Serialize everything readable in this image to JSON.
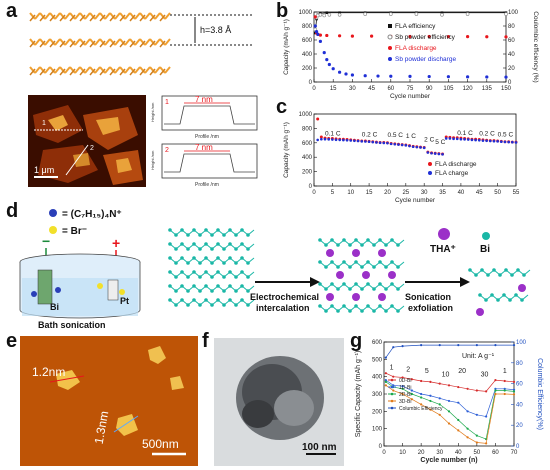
{
  "panel_labels": {
    "a": "a",
    "b": "b",
    "c": "c",
    "d": "d",
    "e": "e",
    "f": "f",
    "g": "g"
  },
  "panel_a": {
    "height_label": "h=3.8 Å",
    "scale_label": "1 μm",
    "line_labels": [
      "1",
      "2"
    ],
    "profile1": {
      "index": "1",
      "value": "7 nm",
      "xlabel": "Profile /nm",
      "ylabel": "Height /nm"
    },
    "profile2": {
      "index": "2",
      "value": "7 nm",
      "xlabel": "Profile /nm",
      "ylabel": "Height /nm"
    }
  },
  "panel_d": {
    "legend_cation": "= (C₇H₁₅)₄N⁺",
    "legend_anion": "= Br⁻",
    "electrode_bi": "Bi",
    "electrode_pt": "Pt",
    "minus": "−",
    "plus": "+",
    "caption": "Bath sonication",
    "step1": "Electrochemical\nintercalation",
    "step1_a": "Electrochemical",
    "step1_b": "intercalation",
    "step2_a": "Sonication",
    "step2_b": "exfoliation",
    "tha": "THA⁺",
    "bi": "Bi"
  },
  "panel_e": {
    "label1": "1.2nm",
    "label2": "1.3nm",
    "scale": "500nm"
  },
  "panel_f": {
    "scale": "100 nm"
  },
  "colors": {
    "black": "#111111",
    "gray": "#888888",
    "red": "#e8161c",
    "blue": "#1f2fd6",
    "axis_blue": "#1f4fbf",
    "orange": "#f0a030",
    "teal": "#1ab7a6",
    "purple": "#9b30c8",
    "afm_dark": "#3a0d00",
    "afm_mid": "#8e2e08",
    "afm_light": "#e9a23a"
  },
  "chart_data": [
    {
      "id": "b",
      "type": "line",
      "xlabel": "Cycle number",
      "ylabel": "Capacity (mAh g⁻¹)",
      "y2label": "Coulombic efficiency (%)",
      "xlim": [
        0,
        150
      ],
      "ylim": [
        0,
        1000
      ],
      "y2lim": [
        0,
        100
      ],
      "xticks": [
        0,
        15,
        30,
        45,
        60,
        75,
        90,
        105,
        120,
        135,
        150
      ],
      "yticks": [
        0,
        200,
        400,
        600,
        800,
        1000
      ],
      "y2ticks": [
        0,
        20,
        40,
        60,
        80,
        100
      ],
      "legend": [
        "FLA efficiency",
        "Sb powder efficiency",
        "FLA  discharge",
        "Sb powder discharge"
      ],
      "series": [
        {
          "name": "FLA efficiency",
          "axis": "y2",
          "x": [
            1,
            2,
            3,
            5,
            10,
            20,
            40,
            60,
            80,
            100,
            120,
            150
          ],
          "values": [
            70,
            90,
            96,
            98,
            99,
            99,
            99,
            99,
            99,
            99,
            99,
            99
          ]
        },
        {
          "name": "Sb powder efficiency",
          "axis": "y2",
          "x": [
            1,
            2,
            3,
            5,
            8,
            12,
            20,
            40,
            60,
            80,
            100,
            120,
            150
          ],
          "values": [
            75,
            92,
            95,
            96,
            95,
            96,
            96,
            97,
            97,
            97,
            96,
            97,
            97
          ]
        },
        {
          "name": "FLA  discharge",
          "axis": "y",
          "x": [
            1,
            2,
            3,
            5,
            10,
            20,
            30,
            45,
            60,
            75,
            90,
            105,
            120,
            135,
            150
          ],
          "values": [
            930,
            700,
            680,
            670,
            665,
            660,
            655,
            655,
            652,
            650,
            650,
            648,
            648,
            646,
            645
          ]
        },
        {
          "name": "Sb powder discharge",
          "axis": "y",
          "x": [
            1,
            2,
            3,
            5,
            8,
            10,
            12,
            15,
            20,
            25,
            30,
            40,
            50,
            60,
            75,
            90,
            105,
            120,
            135,
            150
          ],
          "values": [
            800,
            720,
            680,
            580,
            420,
            320,
            250,
            190,
            140,
            115,
            100,
            90,
            85,
            82,
            80,
            78,
            76,
            74,
            72,
            70
          ]
        }
      ]
    },
    {
      "id": "c",
      "type": "line",
      "xlabel": "Cycle number",
      "ylabel": "Capacity (mAh g⁻¹)",
      "xlim": [
        0,
        55
      ],
      "ylim": [
        0,
        1000
      ],
      "xticks": [
        0,
        5,
        10,
        15,
        20,
        25,
        30,
        35,
        40,
        45,
        50,
        55
      ],
      "yticks": [
        0,
        200,
        400,
        600,
        800,
        1000
      ],
      "rate_labels": [
        "0.1 C",
        "0.2 C",
        "0.5 C",
        "1 C",
        "2 C",
        "5 C",
        "0.1 C",
        "0.2 C",
        "0.5 C"
      ],
      "legend": [
        "FLA discharge",
        "FLA charge"
      ],
      "series": [
        {
          "name": "FLA discharge",
          "x": [
            1,
            2,
            3,
            4,
            5,
            6,
            7,
            8,
            9,
            10,
            11,
            12,
            13,
            14,
            15,
            16,
            17,
            18,
            19,
            20,
            21,
            22,
            23,
            24,
            25,
            26,
            27,
            28,
            29,
            30,
            31,
            32,
            33,
            34,
            35,
            36,
            37,
            38,
            39,
            40,
            41,
            42,
            43,
            44,
            45,
            46,
            47,
            48,
            49,
            50,
            51,
            52,
            53,
            54,
            55
          ],
          "values": [
            930,
            680,
            665,
            660,
            660,
            655,
            650,
            650,
            645,
            640,
            635,
            630,
            625,
            625,
            620,
            615,
            610,
            605,
            605,
            600,
            590,
            585,
            580,
            575,
            570,
            560,
            550,
            545,
            540,
            535,
            470,
            460,
            455,
            450,
            445,
            680,
            675,
            670,
            670,
            665,
            660,
            655,
            650,
            650,
            645,
            640,
            635,
            630,
            630,
            625,
            620,
            615,
            615,
            610,
            610
          ]
        },
        {
          "name": "FLA charge",
          "x": [
            1,
            2,
            3,
            4,
            5,
            6,
            7,
            8,
            9,
            10,
            11,
            12,
            13,
            14,
            15,
            16,
            17,
            18,
            19,
            20,
            21,
            22,
            23,
            24,
            25,
            26,
            27,
            28,
            29,
            30,
            31,
            32,
            33,
            34,
            35,
            36,
            37,
            38,
            39,
            40,
            41,
            42,
            43,
            44,
            45,
            46,
            47,
            48,
            49,
            50,
            51,
            52,
            53,
            54,
            55
          ],
          "values": [
            640,
            650,
            650,
            648,
            645,
            642,
            640,
            638,
            635,
            632,
            628,
            625,
            620,
            618,
            615,
            610,
            605,
            600,
            598,
            595,
            585,
            580,
            575,
            570,
            565,
            555,
            545,
            540,
            535,
            530,
            465,
            455,
            450,
            445,
            440,
            660,
            660,
            655,
            655,
            650,
            648,
            645,
            640,
            638,
            635,
            630,
            628,
            625,
            622,
            620,
            615,
            612,
            610,
            608,
            605
          ]
        }
      ]
    },
    {
      "id": "g",
      "type": "line",
      "xlabel": "Cycle number (n)",
      "ylabel": "Specific Capacity (mAh g⁻¹)",
      "y2label": "Columbic Efficiency(%)",
      "unit_label": "Unit: A g⁻¹",
      "rate_labels": [
        "1",
        "2",
        "5",
        "10",
        "20",
        "30",
        "1"
      ],
      "xlim": [
        0,
        70
      ],
      "ylim": [
        0,
        600
      ],
      "y2lim": [
        0,
        100
      ],
      "xticks": [
        0,
        10,
        20,
        30,
        40,
        50,
        60,
        70
      ],
      "yticks": [
        0,
        100,
        200,
        300,
        400,
        500,
        600
      ],
      "y2ticks": [
        0,
        20,
        40,
        60,
        80,
        100
      ],
      "legend": [
        "0D-Bi",
        "1D-Bi",
        "2D-Bi",
        "3D-Bi",
        "Columbic Efficiency"
      ],
      "series": [
        {
          "name": "0D-Bi",
          "x": [
            1,
            5,
            10,
            15,
            20,
            25,
            30,
            35,
            40,
            45,
            50,
            55,
            60,
            65,
            70
          ],
          "values": [
            420,
            400,
            395,
            385,
            375,
            370,
            360,
            350,
            340,
            330,
            320,
            315,
            380,
            375,
            370
          ]
        },
        {
          "name": "1D-Bi",
          "x": [
            1,
            5,
            10,
            15,
            20,
            25,
            30,
            35,
            40,
            45,
            50,
            55,
            60,
            65,
            70
          ],
          "values": [
            380,
            350,
            345,
            320,
            300,
            290,
            275,
            260,
            250,
            200,
            180,
            170,
            330,
            330,
            325
          ]
        },
        {
          "name": "2D-Bi",
          "x": [
            1,
            5,
            10,
            15,
            20,
            25,
            30,
            35,
            40,
            45,
            50,
            55,
            60,
            65,
            70
          ],
          "values": [
            370,
            340,
            330,
            300,
            280,
            260,
            240,
            200,
            150,
            100,
            60,
            40,
            320,
            320,
            315
          ]
        },
        {
          "name": "3D-Bi",
          "x": [
            1,
            5,
            10,
            15,
            20,
            25,
            30,
            35,
            40,
            45,
            50,
            55,
            60,
            65,
            70
          ],
          "values": [
            350,
            320,
            300,
            270,
            240,
            210,
            180,
            130,
            90,
            50,
            20,
            15,
            300,
            300,
            298
          ]
        },
        {
          "name": "Columbic Efficiency",
          "axis": "y2",
          "x": [
            1,
            5,
            10,
            20,
            30,
            40,
            50,
            60,
            70
          ],
          "values": [
            85,
            95,
            96,
            97,
            97,
            97,
            97,
            97,
            97
          ]
        }
      ]
    }
  ]
}
